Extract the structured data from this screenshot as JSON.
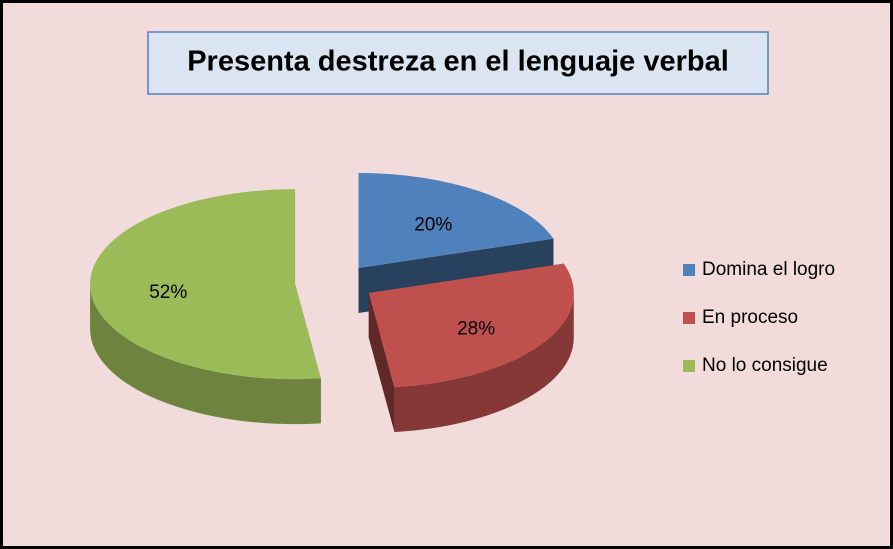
{
  "chart_data": {
    "type": "pie",
    "title": "Presenta destreza en el lenguaje verbal",
    "categories": [
      "Domina el logro",
      "En proceso",
      "No lo consigue"
    ],
    "values": [
      20,
      28,
      52
    ],
    "value_labels": [
      "20%",
      "28%",
      "52%"
    ],
    "colors": [
      "#4f81bd",
      "#c0504d",
      "#9bbb59"
    ],
    "legend": "right"
  }
}
